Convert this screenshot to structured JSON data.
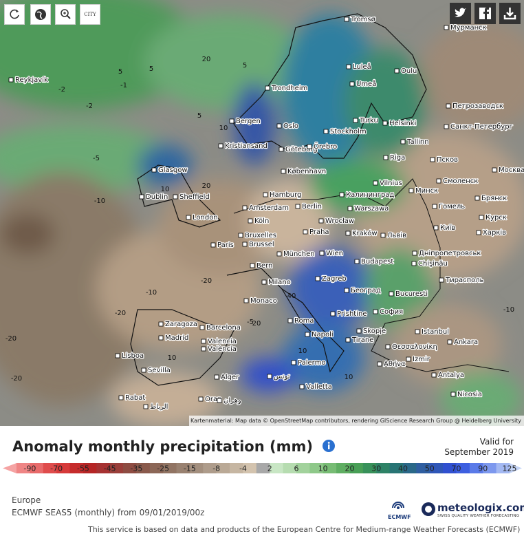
{
  "toolbar": {
    "city_button": "CITY"
  },
  "map": {
    "cities": [
      "Tromsø",
      "Мурманск",
      "Luleå",
      "Oulu",
      "Reykjavík",
      "Trondheim",
      "Umeå",
      "Петрозаводск",
      "Bergen",
      "Oslo",
      "Turku",
      "Helsinki",
      "Санкт-Петербург",
      "Stockholm",
      "Kristiansand",
      "Göteborg",
      "Örebro",
      "Tallinn",
      "Glasgow",
      "Riga",
      "København",
      "Псков",
      "Москва",
      "Vilnius",
      "Минск",
      "Смоленск",
      "Dublin",
      "Sheffield",
      "Hamburg",
      "Калининград",
      "Брянск",
      "Amsterdam",
      "Berlin",
      "Warszawa",
      "Гомель",
      "London",
      "Köln",
      "Wrocław",
      "Київ",
      "Курск",
      "Bruxelles",
      "Brussel",
      "Praha",
      "Kraków",
      "Львів",
      "Харків",
      "Paris",
      "München",
      "Wien",
      "Дніпропетровськ",
      "Bern",
      "Budapest",
      "Chişinău",
      "Milano",
      "Zagreb",
      "Тирасполь",
      "Београд",
      "Bucuresti",
      "Monaco",
      "Prishtine",
      "София",
      "Roma",
      "Zaragoza",
      "Barcelona",
      "Skopje",
      "Istanbul",
      "Napoli",
      "Madrid",
      "Valencia",
      "València",
      "Tirane",
      "Θεσσαλονίκη",
      "Ankara",
      "Lisboa",
      "Izmir",
      "Palermo",
      "Sevilla",
      "Αθήνα",
      "Alger",
      "تونس",
      "Antalya",
      "Valletta",
      "Rabat",
      "الرباط",
      "Oran",
      "وهران",
      "Nicosia"
    ],
    "contour_labels": [
      5,
      20,
      5,
      -1,
      -2,
      5,
      -2,
      10,
      -5,
      20,
      10,
      -10,
      -20,
      -20,
      -10,
      -20,
      -20,
      10,
      20,
      40,
      10,
      -5,
      -10,
      20,
      5,
      10
    ],
    "attribution": "Kartenmaterial: Map data © OpenStreetMap contributors, rendering GIScience Research Group @ Heidelberg University"
  },
  "legend": {
    "title": "Anomaly monthly precipitation (mm)",
    "valid_label": "Valid for",
    "valid_date": "September 2019",
    "scale_ticks": [
      -90,
      -70,
      -55,
      -45,
      -35,
      -25,
      -15,
      -8,
      -4,
      2,
      6,
      10,
      20,
      30,
      40,
      50,
      70,
      90,
      125
    ],
    "colors": [
      "#f5a3a3",
      "#ef8585",
      "#e86a6a",
      "#df4c4c",
      "#d63a3a",
      "#c62c2c",
      "#b52525",
      "#a63232",
      "#9a3f3a",
      "#8e4c42",
      "#8a5a4c",
      "#8c6757",
      "#917463",
      "#998170",
      "#a38f7e",
      "#ae9c8b",
      "#baa996",
      "#c6b6a2",
      "#d3c3ae",
      "#a8a8a8",
      "#c8e6c4",
      "#b6dcb0",
      "#a2d29c",
      "#8ec889",
      "#77bc74",
      "#5fae62",
      "#489f56",
      "#38915a",
      "#2e8266",
      "#287474",
      "#2a6888",
      "#2f5ea0",
      "#2f56b8",
      "#3050d0",
      "#3d5fe0",
      "#5a7ae8",
      "#7d98ee",
      "#a3b8f2",
      "#c4d4f6"
    ]
  },
  "footer": {
    "region": "Europe",
    "model": "ECMWF SEAS5 (monthly) from 09/01/2019/00z",
    "ecmwf": "ECMWF",
    "brand": "meteologix.com",
    "tagline": "SWISS QUALITY WEATHER FORECASTING",
    "disclaimer": "This service is based on data and products of the European Centre for Medium-range Weather Forecasts (ECMWF)"
  }
}
